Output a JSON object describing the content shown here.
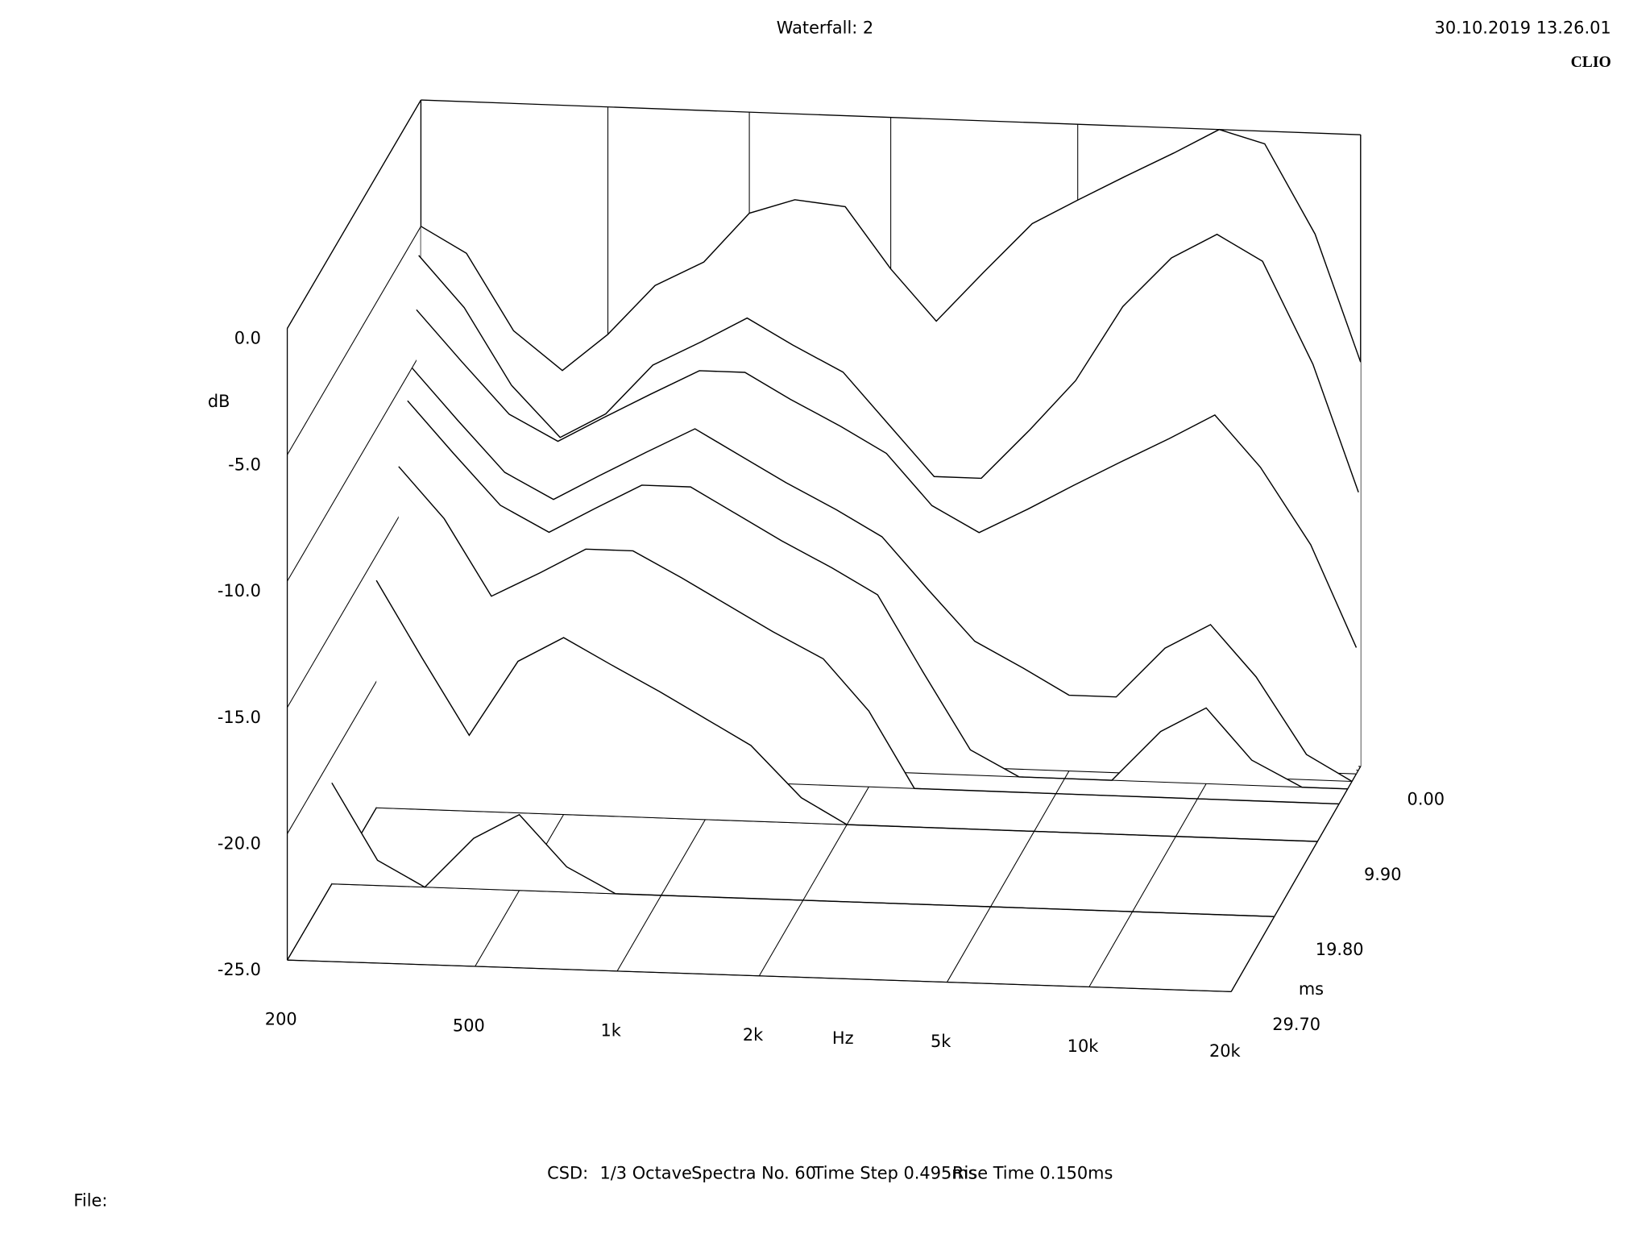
{
  "chart_data": {
    "type": "waterfall",
    "title": "Waterfall: 2",
    "date": "30.10.2019 13.26.01",
    "brand": "CLIO",
    "x_label": "Hz",
    "y_label": "dB",
    "z_label": "ms",
    "footer": [
      "CSD:",
      "1/3 Octave",
      "Spectra No. 60",
      "Time Step 0.495ms",
      "Rise Time 0.150ms"
    ],
    "file_label": "File:",
    "log_x": true,
    "xlim": [
      200,
      20000
    ],
    "ylim": [
      -25,
      0
    ],
    "zlim": [
      0,
      29.7
    ],
    "xticks": [
      200,
      500,
      {
        "value": 1000,
        "label": "1k"
      },
      {
        "value": 2000,
        "label": "2k"
      },
      {
        "value": 5000,
        "label": "5k"
      },
      {
        "value": 10000,
        "label": "10k"
      },
      {
        "value": 20000,
        "label": "20k"
      }
    ],
    "yticks": [
      {
        "value": 0,
        "label": "0.0"
      },
      {
        "value": -5,
        "label": "-5.0"
      },
      {
        "value": -10,
        "label": "-10.0"
      },
      {
        "value": -15,
        "label": "-15.0"
      },
      {
        "value": -20,
        "label": "-20.0"
      },
      {
        "value": -25,
        "label": "-25.0"
      }
    ],
    "zticks": [
      {
        "value": 0,
        "label": "0.00"
      },
      {
        "value": 9.9,
        "label": "9.90"
      },
      {
        "value": 19.8,
        "label": "19.80"
      },
      {
        "value": 29.7,
        "label": "29.70"
      }
    ],
    "color": "#000000",
    "x": [
      200,
      250,
      315,
      400,
      500,
      630,
      800,
      1000,
      1250,
      1600,
      2000,
      2500,
      3150,
      4000,
      5000,
      6300,
      8000,
      10000,
      12500,
      16000,
      20000
    ],
    "series": [
      {
        "time": 0,
        "values": [
          -5,
          -6,
          -9,
          -10.5,
          -9,
          -7,
          -6,
          -4,
          -3.4,
          -3.6,
          -6,
          -8,
          -6,
          -4,
          -3,
          -2,
          -1,
          0,
          -0.5,
          -4,
          -9
        ]
      },
      {
        "time": 0.495,
        "values": [
          -6,
          -8,
          -11,
          -13,
          -12,
          -10,
          -9,
          -8,
          -9,
          -10,
          -12,
          -14,
          -14,
          -12,
          -10,
          -7,
          -5,
          -4,
          -5,
          -9,
          -14
        ]
      },
      {
        "time": 0.99,
        "values": [
          -8,
          -10,
          -12,
          -13,
          -12,
          -11,
          -10,
          -10,
          -11,
          -12,
          -13,
          -15,
          -16,
          -15,
          -14,
          -13,
          -12,
          -11,
          -13,
          -16,
          -20
        ]
      },
      {
        "time": 1.98,
        "values": [
          -10,
          -12,
          -14,
          -15,
          -14,
          -13,
          -12,
          -13,
          -14,
          -15,
          -16,
          -18,
          -20,
          -21,
          -22,
          -22,
          -20,
          -19,
          -21,
          -24,
          -25
        ]
      },
      {
        "time": 2.97,
        "values": [
          -11,
          -13,
          -15,
          -16,
          -15,
          -14,
          -14,
          -15,
          -16,
          -17,
          -18,
          -21,
          -24,
          -25,
          -25,
          -25,
          -23,
          -22,
          -24,
          -25,
          -25
        ]
      },
      {
        "time": 4.95,
        "values": [
          -13,
          -15,
          -18,
          -17,
          -16,
          -16,
          -17,
          -18,
          -19,
          -20,
          -22,
          -25,
          -25,
          -25,
          -25,
          -25,
          -25,
          -25,
          -25,
          -25,
          -25
        ]
      },
      {
        "time": 9.9,
        "values": [
          -16,
          -19,
          -22,
          -19,
          -18,
          -19,
          -20,
          -21,
          -22,
          -24,
          -25,
          -25,
          -25,
          -25,
          -25,
          -25,
          -25,
          -25,
          -25,
          -25,
          -25
        ]
      },
      {
        "time": 19.8,
        "values": [
          -21,
          -24,
          -25,
          -23,
          -22,
          -24,
          -25,
          -25,
          -25,
          -25,
          -25,
          -25,
          -25,
          -25,
          -25,
          -25,
          -25,
          -25,
          -25,
          -25,
          -25
        ]
      }
    ]
  }
}
